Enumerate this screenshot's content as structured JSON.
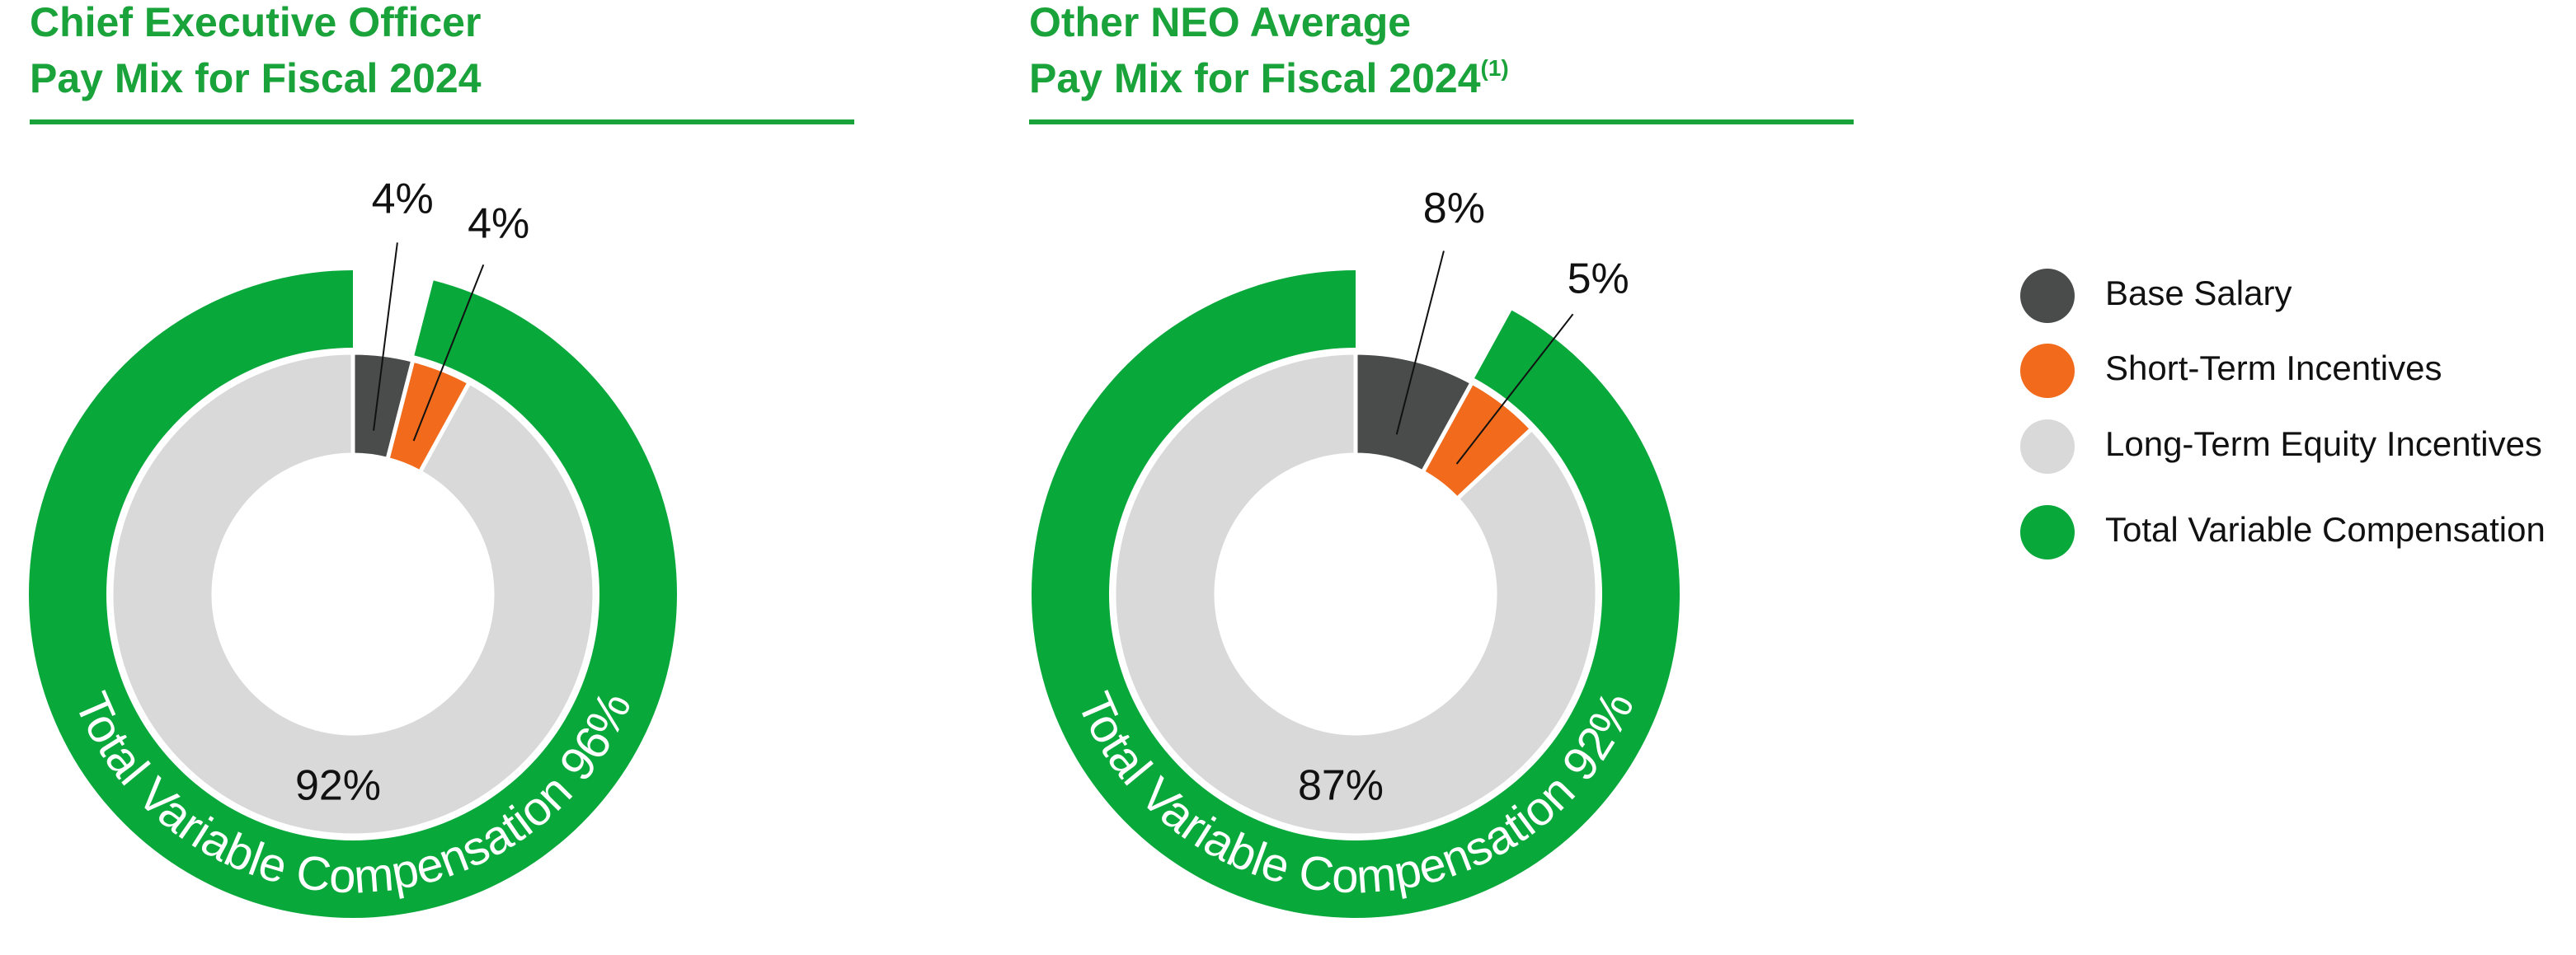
{
  "chart_data": [
    {
      "type": "donut",
      "title": [
        "Chief Executive Officer",
        "Pay Mix for Fiscal 2024"
      ],
      "values": [
        4,
        4,
        92
      ],
      "value_labels": [
        "4%",
        "4%",
        "92%"
      ],
      "variable_total": 96,
      "variable_label": "Total Variable Compensation 96%"
    },
    {
      "type": "donut",
      "title": [
        "Other NEO Average",
        "Pay Mix for Fiscal 2024"
      ],
      "title_note": "(1)",
      "values": [
        8,
        5,
        87
      ],
      "value_labels": [
        "8%",
        "5%",
        "87%"
      ],
      "variable_total": 92,
      "variable_label": "Total Variable Compensation 92%"
    }
  ],
  "legend": [
    {
      "name": "Base Salary",
      "color": "#4a4c4b"
    },
    {
      "name": "Short-Term Incentives",
      "color": "#f26a1b"
    },
    {
      "name": "Long-Term Equity Incentives",
      "color": "#d9d9d9"
    },
    {
      "name": "Total Variable Compensation",
      "color": "#08a83b"
    }
  ],
  "title_color": "#1aa33a"
}
